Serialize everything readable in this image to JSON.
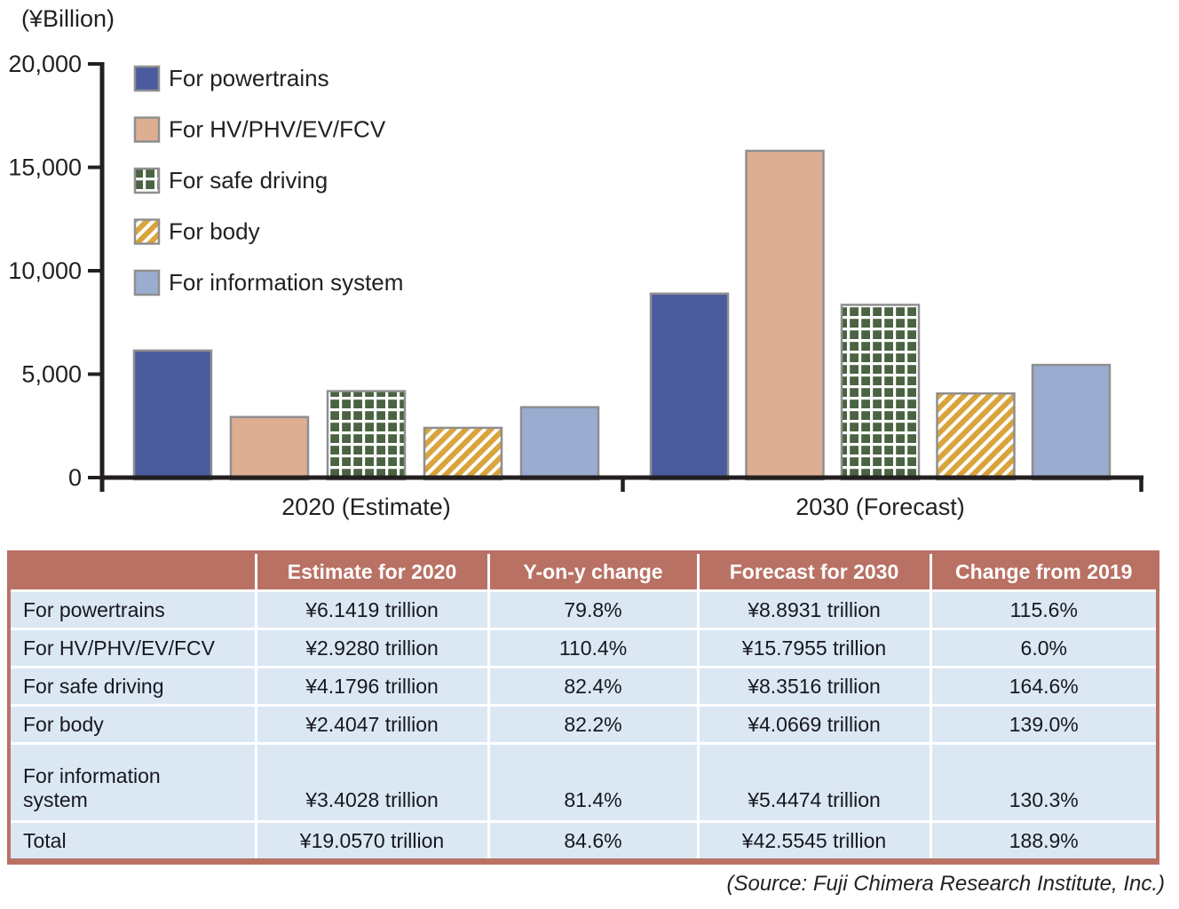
{
  "chart_data": {
    "type": "bar",
    "categories": [
      "2020 (Estimate)",
      "2030 (Forecast)"
    ],
    "series": [
      {
        "name": "For powertrains",
        "style": "solid-blue",
        "values": [
          6141.9,
          8893.1
        ]
      },
      {
        "name": "For HV/PHV/EV/FCV",
        "style": "solid-peach",
        "values": [
          2928.0,
          15795.5
        ]
      },
      {
        "name": "For safe driving",
        "style": "pattern-green-weave",
        "values": [
          4179.6,
          8351.6
        ]
      },
      {
        "name": "For body",
        "style": "pattern-gold-diagonal",
        "values": [
          2404.7,
          4066.9
        ]
      },
      {
        "name": "For information system",
        "style": "solid-periwinkle",
        "values": [
          3402.8,
          5447.4
        ]
      }
    ],
    "title": "",
    "xlabel": "",
    "ylabel": "(¥Billion)",
    "ylim": [
      0,
      20000
    ],
    "yticks": [
      0,
      5000,
      10000,
      15000,
      20000
    ],
    "ytick_labels": [
      "0",
      "5,000",
      "10,000",
      "15,000",
      "20,000"
    ],
    "grid": false,
    "legend_position": "upper-left-inside",
    "colors": {
      "powertrains_blue": "#4a5c9e",
      "hv_peach": "#deae93",
      "safe_green": "#4a6342",
      "body_gold": "#d9a43c",
      "info_periwinkle": "#9aacd0",
      "bar_border": "#8f8f8f",
      "axis": "#231f20"
    }
  },
  "table": {
    "header": [
      "",
      "Estimate for 2020",
      "Y-on-y change",
      "Forecast for 2030",
      "Change from 2019"
    ],
    "rows": [
      [
        "For powertrains",
        "¥6.1419 trillion",
        "79.8%",
        "¥8.8931 trillion",
        "115.6%"
      ],
      [
        "For HV/PHV/EV/FCV",
        "¥2.9280 trillion",
        "110.4%",
        "¥15.7955 trillion",
        "6.0%"
      ],
      [
        "For safe driving",
        "¥4.1796 trillion",
        "82.4%",
        "¥8.3516 trillion",
        "164.6%"
      ],
      [
        "For body",
        "¥2.4047 trillion",
        "82.2%",
        "¥4.0669 trillion",
        "139.0%"
      ],
      [
        "For information\nsystem",
        "¥3.4028 trillion",
        "81.4%",
        "¥5.4474 trillion",
        "130.3%"
      ],
      [
        "Total",
        "¥19.0570 trillion",
        "84.6%",
        "¥42.5545 trillion",
        "188.9%"
      ]
    ],
    "colors": {
      "header_bg": "#b97164",
      "row_bg": "#dbe8f4",
      "header_text": "#ffffff",
      "body_text": "#17171f"
    }
  },
  "source_note": "(Source: Fuji Chimera Research Institute, Inc.)"
}
